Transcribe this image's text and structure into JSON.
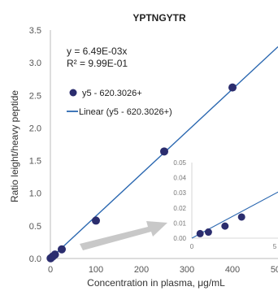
{
  "chart_data": {
    "type": "scatter",
    "title": "YPTNGYTR",
    "xlabel": "Concentration in plasma, μg/mL",
    "ylabel": "Ratio leight/heavy peptide",
    "xlim": [
      0,
      500
    ],
    "ylim": [
      0,
      3.5
    ],
    "x_ticks": [
      "0",
      "100",
      "200",
      "300",
      "400",
      "500"
    ],
    "y_ticks": [
      "0.0",
      "0.5",
      "1.0",
      "1.5",
      "2.0",
      "2.5",
      "3.0",
      "3.5"
    ],
    "grid": false,
    "legend_position": "upper-left",
    "equation": "y = 6.49E-03x",
    "r_squared": "R² = 9.99E-01",
    "series": [
      {
        "name": "y5 - 620.3026+",
        "kind": "points",
        "color": "#2b2d6e",
        "x": [
          0.5,
          1,
          5,
          10,
          25,
          100,
          250,
          400
        ],
        "y": [
          0.003,
          0.006,
          0.03,
          0.06,
          0.14,
          0.58,
          1.64,
          2.62
        ]
      },
      {
        "name": "Linear (y5 - 620.3026+)",
        "kind": "line",
        "color": "#2a67b0",
        "slope": 0.00649,
        "x_range": [
          0,
          500
        ]
      }
    ],
    "inset": {
      "xlim": [
        0,
        5
      ],
      "ylim": [
        0,
        0.05
      ],
      "x_ticks": [
        "0",
        "5"
      ],
      "y_ticks": [
        "0.00",
        "0.01",
        "0.02",
        "0.03",
        "0.04",
        "0.05"
      ],
      "x": [
        0.5,
        1,
        2,
        3
      ],
      "y": [
        0.003,
        0.004,
        0.008,
        0.014
      ]
    }
  }
}
